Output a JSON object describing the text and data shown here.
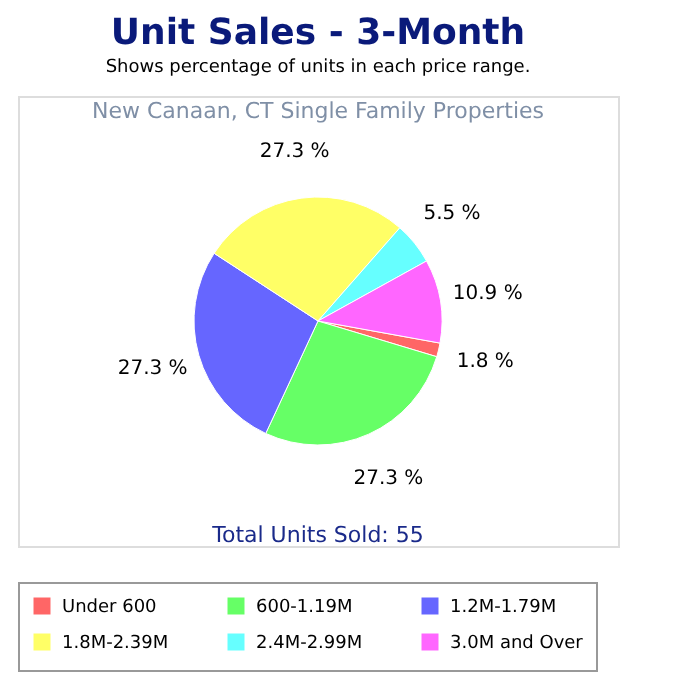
{
  "chart_data": {
    "type": "pie",
    "title": "Unit Sales - 3-Month",
    "subtitle": "Shows percentage of units in each price range.",
    "categories": [
      "Under 600",
      "600-1.19M",
      "1.2M-1.79M",
      "1.8M-2.39M",
      "2.4M-2.99M",
      "3.0M and Over"
    ],
    "values": [
      1.8,
      27.3,
      27.3,
      27.3,
      5.5,
      10.9
    ],
    "colors": [
      "#ff6666",
      "#66ff66",
      "#6666ff",
      "#ffff66",
      "#66ffff",
      "#ff66ff"
    ],
    "value_labels": [
      "1.8 %",
      "27.3 %",
      "27.3 %",
      "27.3 %",
      "5.5 %",
      "10.9 %"
    ],
    "annotations": [
      "New Canaan, CT Single Family Properties",
      "Total Units Sold: 55"
    ],
    "legend": "bottom"
  }
}
